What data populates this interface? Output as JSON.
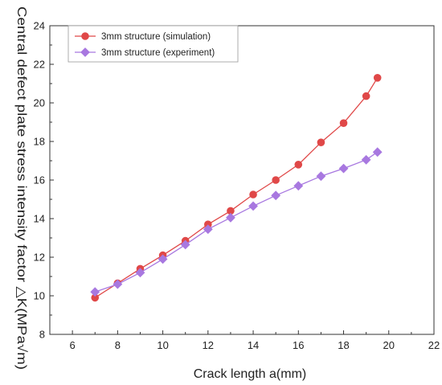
{
  "chart_data": {
    "type": "line",
    "title": "",
    "xlabel": "Crack length a(mm)",
    "ylabel": "Central defect plate stress intensity factor △K(MPa√m)",
    "xlim": [
      5,
      22
    ],
    "ylim": [
      8,
      24
    ],
    "xticks": [
      6,
      8,
      10,
      12,
      14,
      16,
      18,
      20,
      22
    ],
    "yticks": [
      8,
      10,
      12,
      14,
      16,
      18,
      20,
      22,
      24
    ],
    "grid": false,
    "legend_position": "top-left",
    "series": [
      {
        "name": "3mm structure (simulation)",
        "color": "#e04848",
        "marker": "circle",
        "x": [
          7,
          8,
          9,
          10,
          11,
          12,
          13,
          14,
          15,
          16,
          17,
          18,
          19,
          19.5
        ],
        "y": [
          9.9,
          10.65,
          11.4,
          12.1,
          12.85,
          13.7,
          14.4,
          15.25,
          16.0,
          16.8,
          17.95,
          18.95,
          20.35,
          21.3
        ]
      },
      {
        "name": "3mm structure (experiment)",
        "color": "#a878e0",
        "marker": "diamond",
        "x": [
          7,
          8,
          9,
          10,
          11,
          12,
          13,
          14,
          15,
          16,
          17,
          18,
          19,
          19.5
        ],
        "y": [
          10.2,
          10.6,
          11.2,
          11.9,
          12.65,
          13.45,
          14.05,
          14.65,
          15.2,
          15.7,
          16.2,
          16.6,
          17.05,
          17.45
        ]
      }
    ]
  }
}
